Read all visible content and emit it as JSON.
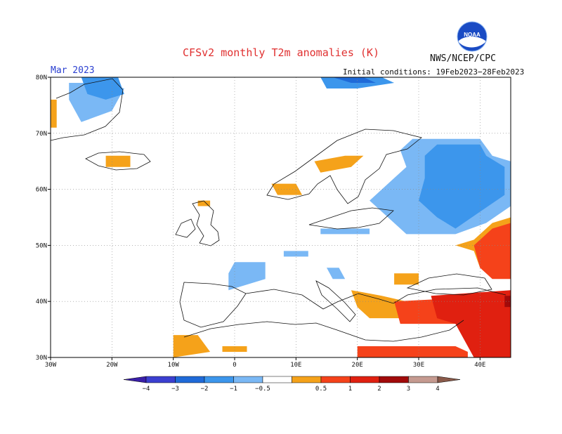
{
  "header": {
    "title": "CFSv2 monthly T2m anomalies (K)",
    "org": "NWS/NCEP/CPC",
    "month": "Mar 2023",
    "initial_conditions": "Initial conditions: 19Feb2023−28Feb2023",
    "logo_text": "NOAA"
  },
  "axes": {
    "lon_labels": [
      "30W",
      "20W",
      "10W",
      "0",
      "10E",
      "20E",
      "30E",
      "40E"
    ],
    "lat_labels": [
      "80N",
      "70N",
      "60N",
      "50N",
      "40N",
      "30N"
    ]
  },
  "colorbar": {
    "labels": [
      "−4",
      "−3",
      "−2",
      "−1",
      "−0.5",
      "0.5",
      "1",
      "2",
      "3",
      "4"
    ],
    "colors": [
      "#3a1fa8",
      "#3b3fd0",
      "#1f6ad8",
      "#3c96ec",
      "#7ab8f5",
      "#ffffff",
      "#f5a21a",
      "#f5421a",
      "#e02010",
      "#a10a0a",
      "#c59a90",
      "#8a5a4a"
    ]
  },
  "map": {
    "lon_range": [
      -30,
      45
    ],
    "lat_range": [
      30,
      80
    ],
    "anomaly_regions": [
      {
        "cat": "neg0.5",
        "poly": [
          [
            -27,
            79
          ],
          [
            -21,
            79
          ],
          [
            -18,
            78
          ],
          [
            -20,
            74
          ],
          [
            -25,
            72
          ],
          [
            -27,
            76
          ]
        ]
      },
      {
        "cat": "neg1",
        "poly": [
          [
            -25,
            80
          ],
          [
            -19,
            80
          ],
          [
            -18,
            77
          ],
          [
            -21,
            76
          ],
          [
            -24,
            77
          ]
        ]
      },
      {
        "cat": "neg1",
        "poly": [
          [
            14,
            80
          ],
          [
            24,
            80
          ],
          [
            26,
            79
          ],
          [
            20,
            78
          ],
          [
            15,
            78
          ]
        ]
      },
      {
        "cat": "neg2",
        "poly": [
          [
            16,
            80
          ],
          [
            21,
            80
          ],
          [
            23,
            79
          ],
          [
            19,
            79
          ]
        ]
      },
      {
        "cat": "neg0.5",
        "poly": [
          [
            29,
            69
          ],
          [
            40,
            69
          ],
          [
            42,
            66
          ],
          [
            45,
            65
          ],
          [
            45,
            57
          ],
          [
            41,
            54
          ],
          [
            36,
            52
          ],
          [
            28,
            52
          ],
          [
            25,
            55
          ],
          [
            22,
            58
          ],
          [
            25,
            61
          ],
          [
            28,
            64
          ],
          [
            27,
            67
          ]
        ]
      },
      {
        "cat": "neg1",
        "poly": [
          [
            33,
            68
          ],
          [
            40,
            68
          ],
          [
            41,
            66
          ],
          [
            44,
            64
          ],
          [
            44,
            59
          ],
          [
            40,
            56
          ],
          [
            36,
            53
          ],
          [
            33,
            55
          ],
          [
            30,
            58
          ],
          [
            31,
            62
          ],
          [
            31,
            66
          ]
        ]
      },
      {
        "cat": "neg0.5",
        "poly": [
          [
            14,
            53
          ],
          [
            22,
            53
          ],
          [
            22,
            52
          ],
          [
            14,
            52
          ]
        ]
      },
      {
        "cat": "neg0.5",
        "poly": [
          [
            8,
            49
          ],
          [
            12,
            49
          ],
          [
            12,
            48
          ],
          [
            8,
            48
          ]
        ]
      },
      {
        "cat": "neg0.5",
        "poly": [
          [
            0,
            47
          ],
          [
            5,
            47
          ],
          [
            5,
            44
          ],
          [
            2,
            43
          ],
          [
            -1,
            42
          ],
          [
            -1,
            45
          ]
        ]
      },
      {
        "cat": "neg0.5",
        "poly": [
          [
            15,
            46
          ],
          [
            17,
            46
          ],
          [
            18,
            44
          ],
          [
            16,
            44
          ]
        ]
      },
      {
        "cat": "pos0.5",
        "poly": [
          [
            -30,
            76
          ],
          [
            -29,
            76
          ],
          [
            -29,
            71
          ],
          [
            -30,
            71
          ]
        ]
      },
      {
        "cat": "pos0.5",
        "poly": [
          [
            -21,
            66
          ],
          [
            -17,
            66
          ],
          [
            -17,
            64
          ],
          [
            -21,
            64
          ]
        ]
      },
      {
        "cat": "pos0.5",
        "poly": [
          [
            6,
            61
          ],
          [
            10,
            61
          ],
          [
            11,
            59
          ],
          [
            7,
            59
          ]
        ]
      },
      {
        "cat": "pos0.5",
        "poly": [
          [
            13,
            65
          ],
          [
            18,
            66
          ],
          [
            21,
            66
          ],
          [
            19,
            64
          ],
          [
            14,
            63
          ]
        ]
      },
      {
        "cat": "pos0.5",
        "poly": [
          [
            -6,
            58
          ],
          [
            -4,
            58
          ],
          [
            -4,
            57
          ],
          [
            -6,
            57
          ]
        ]
      },
      {
        "cat": "pos0.5",
        "poly": [
          [
            19,
            42
          ],
          [
            24,
            41
          ],
          [
            28,
            40
          ],
          [
            27,
            37
          ],
          [
            22,
            37
          ],
          [
            20,
            39
          ]
        ]
      },
      {
        "cat": "pos0.5",
        "poly": [
          [
            26,
            45
          ],
          [
            30,
            45
          ],
          [
            30,
            43
          ],
          [
            26,
            43
          ]
        ]
      },
      {
        "cat": "pos0.5",
        "poly": [
          [
            -10,
            34
          ],
          [
            -6,
            34
          ],
          [
            -4,
            31
          ],
          [
            -10,
            30
          ]
        ]
      },
      {
        "cat": "pos0.5",
        "poly": [
          [
            -2,
            32
          ],
          [
            2,
            32
          ],
          [
            2,
            31
          ],
          [
            -2,
            31
          ]
        ]
      },
      {
        "cat": "pos0.5",
        "poly": [
          [
            36,
            50
          ],
          [
            39,
            51
          ],
          [
            42,
            54
          ],
          [
            45,
            55
          ],
          [
            45,
            45
          ],
          [
            42,
            45
          ],
          [
            40,
            46
          ],
          [
            39,
            49
          ]
        ]
      },
      {
        "cat": "pos1",
        "poly": [
          [
            39,
            50
          ],
          [
            42,
            53
          ],
          [
            45,
            54
          ],
          [
            45,
            44
          ],
          [
            42,
            44
          ],
          [
            40,
            46
          ]
        ]
      },
      {
        "cat": "pos1",
        "poly": [
          [
            26,
            40
          ],
          [
            44,
            41
          ],
          [
            45,
            37
          ],
          [
            41,
            36
          ],
          [
            35,
            36
          ],
          [
            27,
            36
          ]
        ]
      },
      {
        "cat": "pos1",
        "poly": [
          [
            20,
            32
          ],
          [
            36,
            32
          ],
          [
            38,
            31
          ],
          [
            38,
            30
          ],
          [
            20,
            30
          ]
        ]
      },
      {
        "cat": "pos2",
        "poly": [
          [
            32,
            41
          ],
          [
            45,
            42
          ],
          [
            45,
            30
          ],
          [
            39,
            30
          ],
          [
            37,
            34
          ],
          [
            36,
            36
          ],
          [
            33,
            37
          ]
        ]
      },
      {
        "cat": "pos3",
        "poly": [
          [
            44,
            41
          ],
          [
            45,
            41
          ],
          [
            45,
            39
          ],
          [
            44,
            39
          ]
        ]
      }
    ]
  }
}
